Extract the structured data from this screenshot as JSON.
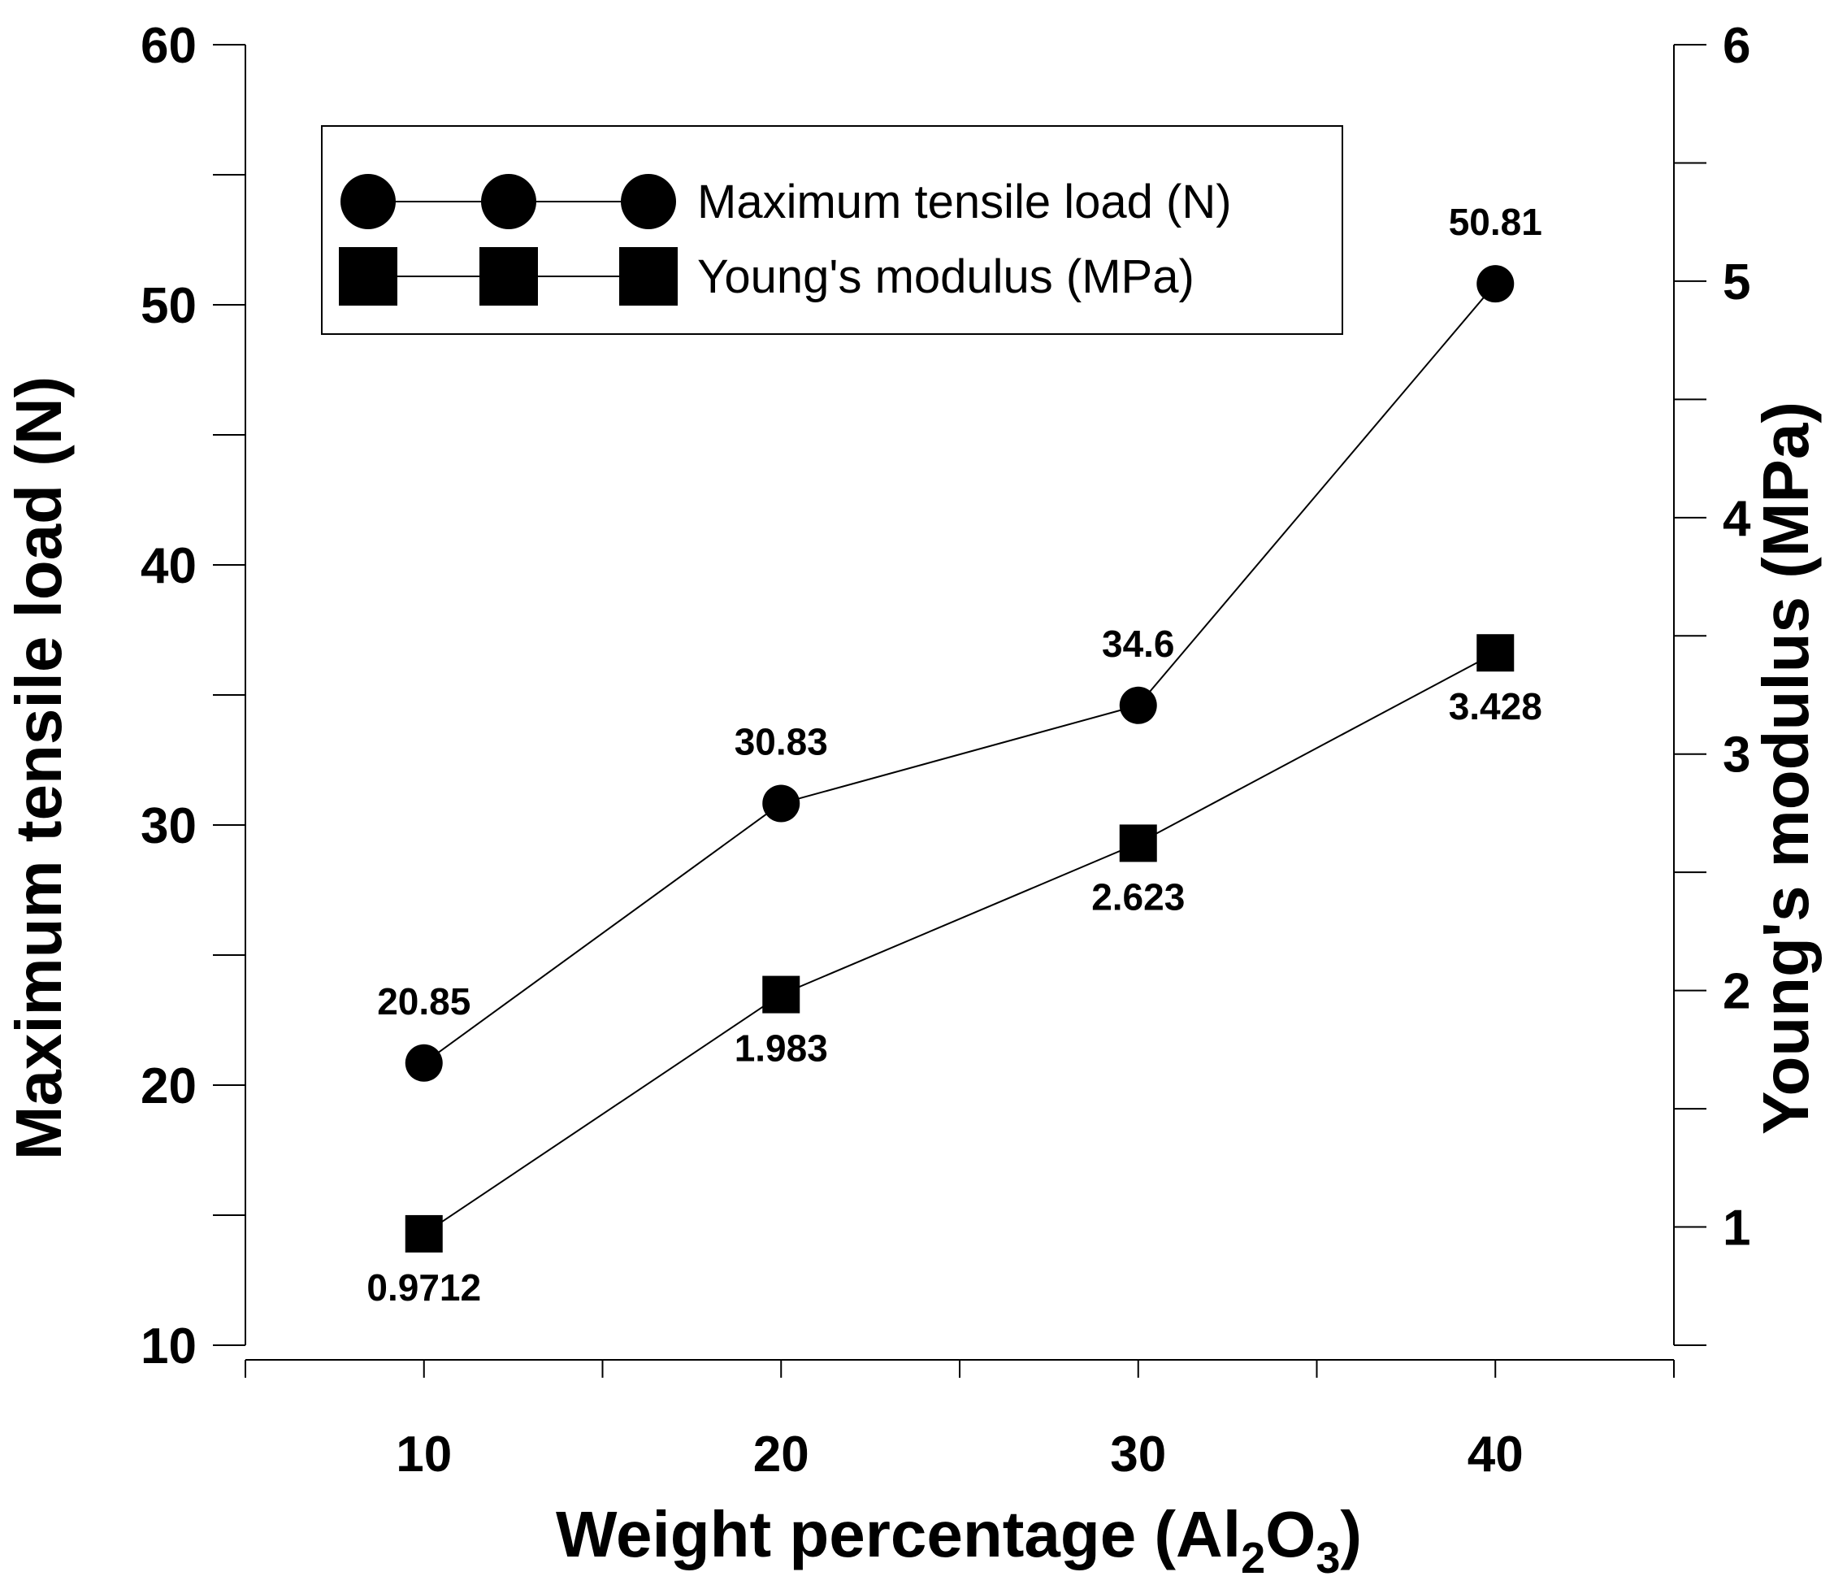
{
  "chart_data": {
    "type": "line",
    "x": [
      10,
      20,
      30,
      40
    ],
    "xlim": [
      5,
      45
    ],
    "x_ticks": [
      10,
      20,
      30,
      40
    ],
    "xlabel": {
      "main": "Weight percentage (Al",
      "sub1": "2",
      "mid": "O",
      "sub2": "3",
      "end": ")"
    },
    "ylabel_left": "Maximum tensile load (N)",
    "ylabel_right": "Young's modulus (MPa)",
    "ylim_left": [
      10,
      60
    ],
    "ylim_right": [
      0.5,
      6
    ],
    "y_ticks_left": [
      10,
      20,
      30,
      40,
      50,
      60
    ],
    "y_ticks_right": [
      1,
      2,
      3,
      4,
      5,
      6
    ],
    "series": [
      {
        "name": "Maximum tensile load (N)",
        "axis": "left",
        "marker": "circle",
        "values": [
          20.85,
          30.83,
          34.6,
          50.81
        ],
        "labels": [
          "20.85",
          "30.83",
          "34.6",
          "50.81"
        ]
      },
      {
        "name": "Young's modulus (MPa)",
        "axis": "right",
        "marker": "square",
        "values": [
          0.9712,
          1.983,
          2.623,
          3.428
        ],
        "labels": [
          "0.9712",
          "1.983",
          "2.623",
          "3.428"
        ]
      }
    ],
    "legend": "top-left",
    "grid": false
  }
}
